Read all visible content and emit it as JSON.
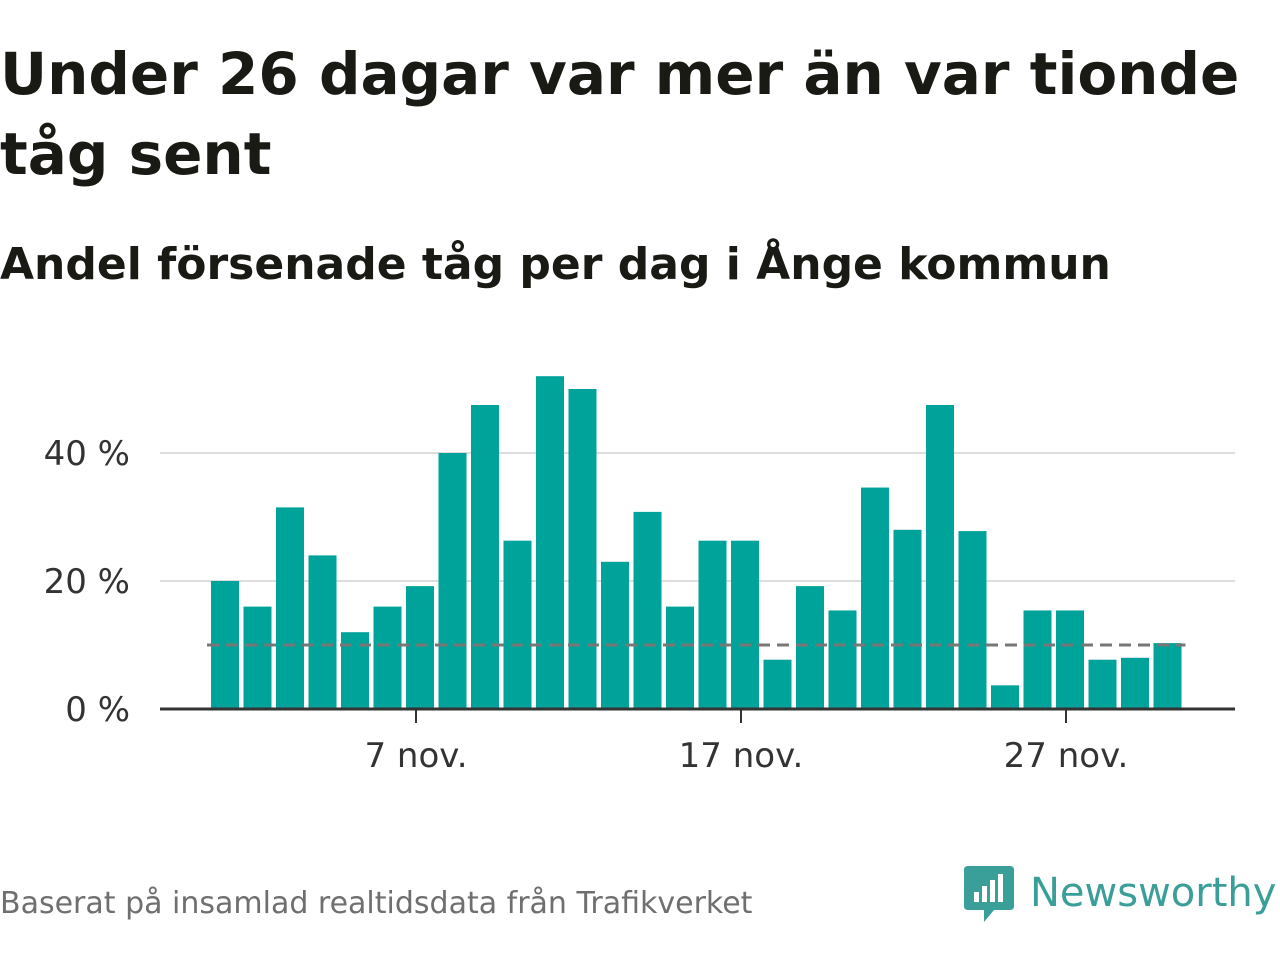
{
  "title": "Under 26 dagar var mer än var tionde tåg sent",
  "subtitle": "Andel försenade tåg per dag i Ånge kommun",
  "footer": "Baserat på insamlad realtidsdata från Trafikverket",
  "brand": {
    "name": "Newsworthy",
    "logo_icon": "bar-chart-speech-bubble-icon",
    "color": "#3a9f98"
  },
  "colors": {
    "bars": "#00a39a",
    "axis": "#333333",
    "gridlines": "#dddddd",
    "threshold_line": "#777777",
    "tick_text": "#333333"
  },
  "chart_data": {
    "type": "bar",
    "x": [
      "1 nov.",
      "2 nov.",
      "3 nov.",
      "4 nov.",
      "5 nov.",
      "6 nov.",
      "7 nov.",
      "8 nov.",
      "9 nov.",
      "10 nov.",
      "11 nov.",
      "12 nov.",
      "13 nov.",
      "14 nov.",
      "15 nov.",
      "16 nov.",
      "17 nov.",
      "18 nov.",
      "19 nov.",
      "20 nov.",
      "21 nov.",
      "22 nov.",
      "23 nov.",
      "24 nov.",
      "25 nov.",
      "26 nov.",
      "27 nov.",
      "28 nov.",
      "29 nov.",
      "30 nov."
    ],
    "values": [
      20,
      16,
      31.5,
      24,
      12,
      16,
      19.2,
      40,
      47.5,
      26.3,
      52,
      50,
      23,
      30.8,
      16,
      26.3,
      26.3,
      7.7,
      19.2,
      15.4,
      34.6,
      28,
      47.5,
      27.8,
      3.7,
      15.4,
      15.4,
      7.7,
      8,
      10.3
    ],
    "unit": "%",
    "ylim": [
      0,
      55
    ],
    "yticks": [
      0,
      20,
      40
    ],
    "ytick_labels": [
      "0 %",
      "20 %",
      "40 %"
    ],
    "xticks": [
      "7 nov.",
      "17 nov.",
      "27 nov."
    ],
    "reference_line": 10,
    "grid": true
  }
}
